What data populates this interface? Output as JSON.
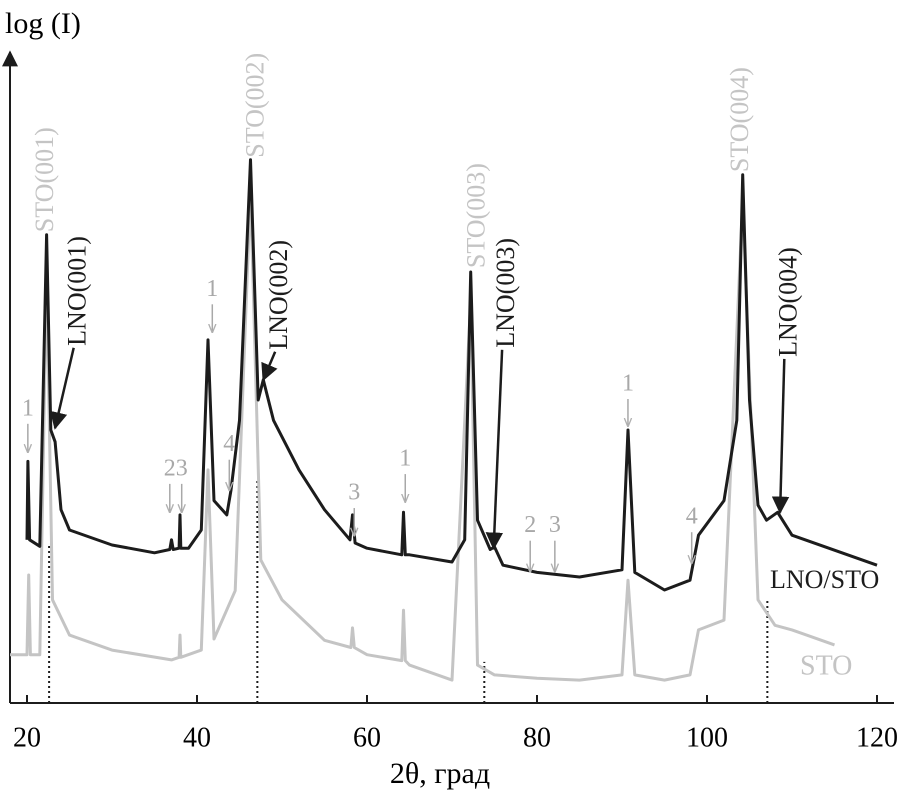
{
  "chart_data": {
    "type": "line",
    "y_label": "log (I)",
    "x_label": "2θ, град",
    "xlim": [
      18,
      122
    ],
    "xticks": [
      20,
      40,
      60,
      80,
      100,
      120
    ],
    "ylim": [
      0,
      100
    ],
    "series": [
      {
        "name": "LNO/STO",
        "color": "#1c1c1c",
        "x": [
          20,
          20.1,
          20.3,
          21.5,
          22.3,
          22.8,
          23.3,
          24,
          25,
          30,
          35,
          36.8,
          37,
          37.2,
          37.9,
          38,
          38.1,
          39,
          40.5,
          41.3,
          42,
          43.5,
          44,
          45,
          46.3,
          47.2,
          47.8,
          49,
          52,
          55,
          58,
          58.3,
          58.6,
          60,
          64.1,
          64.3,
          64.5,
          65,
          70,
          71.5,
          72.2,
          73,
          74.5,
          75,
          76,
          80,
          85,
          90,
          90.7,
          91.5,
          95,
          98,
          99,
          102,
          103.5,
          104.2,
          105,
          106,
          107,
          108.3,
          110,
          115,
          120
        ],
        "values": [
          25,
          37,
          25,
          24,
          71.7,
          41.8,
          40,
          29.6,
          26.5,
          24.2,
          23,
          23.5,
          25,
          23.5,
          23.7,
          28.8,
          23.7,
          23.7,
          26.5,
          55.6,
          31,
          28.8,
          32.6,
          43.3,
          83.2,
          46.4,
          49.5,
          43.3,
          35.7,
          29.6,
          25,
          28.8,
          24.5,
          23.7,
          22.7,
          29.2,
          22.7,
          22.7,
          21.6,
          25,
          66,
          28,
          23.5,
          23.9,
          21.1,
          20,
          19.3,
          20.4,
          41.8,
          20,
          17.3,
          18.8,
          25.7,
          31,
          43.3,
          80.9,
          46.4,
          30.3,
          28,
          29.2,
          25.7,
          23.4,
          21.1
        ]
      },
      {
        "name": "STO",
        "color": "#c4c4c4",
        "x": [
          18,
          20,
          20.2,
          20.4,
          21.5,
          22.3,
          23,
          25,
          30,
          37,
          37.9,
          38,
          38.1,
          40.5,
          41.3,
          42,
          44.5,
          46.3,
          47.5,
          50,
          55,
          58.1,
          58.3,
          58.5,
          60,
          64.1,
          64.3,
          64.5,
          65,
          70,
          72.2,
          73,
          75,
          80,
          85,
          90,
          90.7,
          91.5,
          95,
          98,
          99,
          102,
          104.2,
          106,
          108,
          110,
          115
        ],
        "values": [
          7.4,
          7.4,
          19.6,
          7.4,
          7.4,
          66,
          15.8,
          10.4,
          8.1,
          6.6,
          7,
          10.4,
          7,
          8.1,
          35.7,
          9.8,
          17.2,
          78.6,
          21.9,
          15.8,
          9.6,
          8.5,
          11.5,
          8.5,
          7.4,
          6.5,
          14.2,
          6.5,
          5.8,
          3.5,
          61.7,
          5.8,
          4.3,
          3.8,
          3.5,
          4.3,
          18.8,
          4.3,
          3.5,
          4.3,
          11.2,
          12.7,
          77,
          15.8,
          11.9,
          11.2,
          8.9
        ]
      }
    ],
    "reference_lines": [
      {
        "x": 22.6,
        "y": 24.2
      },
      {
        "x": 47.1,
        "y": 34.1
      },
      {
        "x": 73.8,
        "y": 6.3
      },
      {
        "x": 107.1,
        "y": 15.8
      }
    ],
    "peak_labels": [
      {
        "text": "STO(001)",
        "color": "#c4c4c4",
        "x": 22.35,
        "y": 72.1
      },
      {
        "text": "LNO(001)",
        "color": "#1c1c1c",
        "x": 26.2,
        "y": 54.7,
        "arrow": [
          23.3,
          42.1
        ]
      },
      {
        "text": "STO(002)",
        "color": "#c4c4c4",
        "x": 47.1,
        "y": 83.5
      },
      {
        "text": "LNO(002)",
        "color": "#1c1c1c",
        "x": 49.9,
        "y": 54.1,
        "arrow": [
          47.8,
          49.5
        ]
      },
      {
        "text": "STO(003)",
        "color": "#c4c4c4",
        "x": 73.1,
        "y": 66.6
      },
      {
        "text": "LNO(003)",
        "color": "#1c1c1c",
        "x": 76.6,
        "y": 54.4,
        "arrow": [
          74.9,
          23.7
        ]
      },
      {
        "text": "STO(004)",
        "color": "#c4c4c4",
        "x": 104.1,
        "y": 81.3
      },
      {
        "text": "LNO(004)",
        "color": "#1c1c1c",
        "x": 109.8,
        "y": 53,
        "arrow": [
          108.6,
          29.2
        ]
      }
    ],
    "markers": [
      {
        "text": "1",
        "x": 20.1,
        "y": 44.9,
        "arrow_y": 38.4
      },
      {
        "text": "1",
        "x": 41.8,
        "y": 63.2,
        "arrow_y": 56.8
      },
      {
        "text": "2",
        "x": 36.8,
        "y": 35.7,
        "arrow_y": 29.2
      },
      {
        "text": "3",
        "x": 38.2,
        "y": 35.7,
        "arrow_y": 29.2
      },
      {
        "text": "4",
        "x": 43.8,
        "y": 39.4,
        "arrow_y": 32.6
      },
      {
        "text": "3",
        "x": 58.5,
        "y": 32,
        "arrow_y": 25.6
      },
      {
        "text": "1",
        "x": 64.5,
        "y": 37.2,
        "arrow_y": 30.8
      },
      {
        "text": "2",
        "x": 79.2,
        "y": 27,
        "arrow_y": 20.1
      },
      {
        "text": "3",
        "x": 82.1,
        "y": 27,
        "arrow_y": 20.1
      },
      {
        "text": "1",
        "x": 90.7,
        "y": 48.7,
        "arrow_y": 42.4
      },
      {
        "text": "4",
        "x": 98.2,
        "y": 28.3,
        "arrow_y": 21.4
      }
    ]
  }
}
